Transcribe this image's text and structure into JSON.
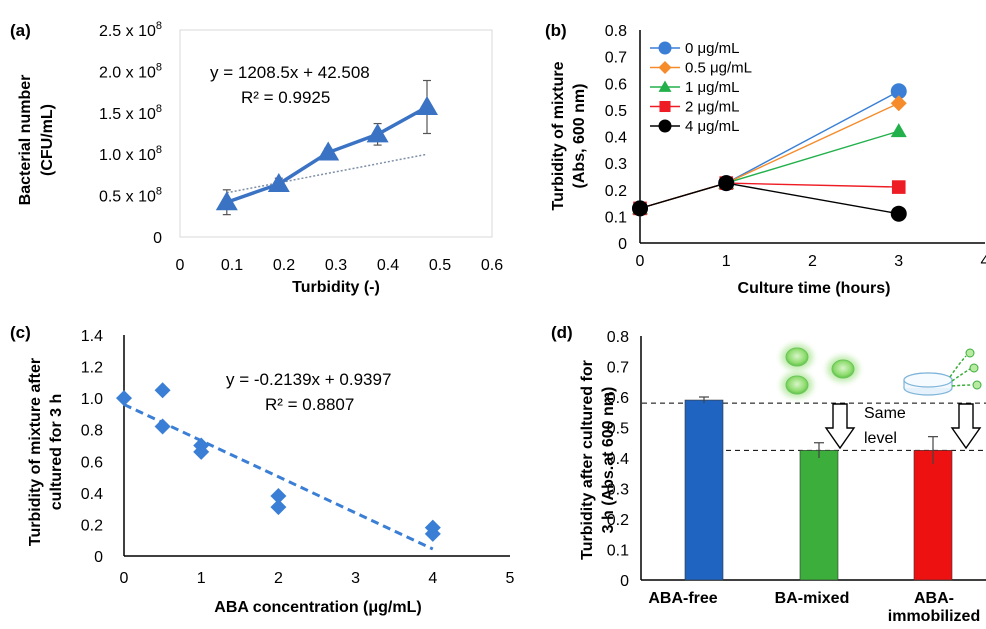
{
  "panels": {
    "a": {
      "label": "(a)",
      "equation": "y = 1208.5x + 42.508",
      "r2": "R² = 0.9925",
      "xlabel": "Turbidity (-)",
      "ylabel_line1": "Bacterial number",
      "ylabel_line2": "(CFU/mL)",
      "xticks": [
        "0",
        "0.1",
        "0.2",
        "0.3",
        "0.4",
        "0.5",
        "0.6"
      ],
      "yticks": [
        "0",
        "0.5 x 10",
        "1.0 x 10",
        "1.5 x 10",
        "2.0 x 10",
        "2.5 x 10"
      ],
      "ytick_exp": "8"
    },
    "b": {
      "label": "(b)",
      "xlabel": "Culture time (hours)",
      "ylabel_line1": "Turbidity of mixture",
      "ylabel_line2": "(Abs, 600 nm)",
      "xticks": [
        "0",
        "1",
        "2",
        "3",
        "4"
      ],
      "yticks": [
        "0",
        "0.1",
        "0.2",
        "0.3",
        "0.4",
        "0.5",
        "0.6",
        "0.7",
        "0.8"
      ]
    },
    "c": {
      "label": "(c)",
      "equation": "y = -0.2139x + 0.9397",
      "r2": "R² = 0.8807",
      "xlabel": "ABA concentration (μg/mL)",
      "ylabel_line1": "Turbidity of mixture after",
      "ylabel_line2": "cultured for 3 h",
      "xticks": [
        "0",
        "1",
        "2",
        "3",
        "4",
        "5"
      ],
      "yticks": [
        "0",
        "0.2",
        "0.4",
        "0.6",
        "0.8",
        "1.0",
        "1.2",
        "1.4"
      ]
    },
    "d": {
      "label": "(d)",
      "ylabel_line1": "Turbidity after cultured for",
      "ylabel_line2": "3 h (Abs.at 600 nm)",
      "yticks": [
        "0",
        "0.1",
        "0.2",
        "0.3",
        "0.4",
        "0.5",
        "0.6",
        "0.7",
        "0.8"
      ],
      "categories_display": [
        "ABA-free",
        "BA-mixed",
        "ABA-",
        "immobilized"
      ],
      "annotation_line1": "Same",
      "annotation_line2": "level"
    }
  },
  "colors": {
    "a_series": "#3a72c4",
    "b_0": "#3a7fd5",
    "b_05": "#f58b2a",
    "b_1": "#22b04b",
    "b_2": "#ee1c24",
    "b_4": "#000000",
    "c_points": "#3a7fd5",
    "d_free": "#1f64c0",
    "d_mixed": "#3cae3c",
    "d_immobilized": "#ee1111",
    "bacteria": "#8fdc6f"
  },
  "chart_data": [
    {
      "type": "line",
      "panel": "a",
      "xlabel": "Turbidity (-)",
      "ylabel": "Bacterial number (CFU/mL)",
      "xlim": [
        0,
        0.6
      ],
      "ylim": [
        0,
        250
      ],
      "y_unit_note": "x 10^8 CFU/mL shown as 0.5 x 10^8 steps",
      "series": [
        {
          "x": [
            0.09,
            0.19,
            0.285,
            0.38,
            0.475
          ],
          "y": [
            42,
            64,
            102,
            124,
            157
          ],
          "err": [
            15,
            7,
            5,
            13,
            32
          ]
        }
      ],
      "trendline": {
        "slope": 1208.5,
        "intercept": 42.508,
        "r2": 0.9925
      },
      "grid": false
    },
    {
      "type": "line",
      "panel": "b",
      "xlabel": "Culture time (hours)",
      "ylabel": "Turbidity of mixture (Abs, 600 nm)",
      "xlim": [
        0,
        4
      ],
      "ylim": [
        0,
        0.8
      ],
      "legend": "top-left",
      "x": [
        0,
        1,
        3
      ],
      "series": [
        {
          "name": "0 μg/mL",
          "values": [
            0.13,
            0.225,
            0.57
          ],
          "marker": "circle"
        },
        {
          "name": "0.5 μg/mL",
          "values": [
            0.13,
            0.225,
            0.525
          ],
          "marker": "diamond"
        },
        {
          "name": "1 μg/mL",
          "values": [
            0.13,
            0.225,
            0.42
          ],
          "marker": "triangle"
        },
        {
          "name": "2 μg/mL",
          "values": [
            0.13,
            0.225,
            0.21
          ],
          "marker": "square"
        },
        {
          "name": "4 μg/mL",
          "values": [
            0.13,
            0.225,
            0.11
          ],
          "marker": "circle"
        }
      ],
      "grid": false
    },
    {
      "type": "scatter",
      "panel": "c",
      "xlabel": "ABA concentration (μg/mL)",
      "ylabel": "Turbidity of mixture after cultured for 3 h",
      "xlim": [
        0,
        5
      ],
      "ylim": [
        0,
        1.4
      ],
      "points": [
        {
          "x": 0,
          "y": 1.0
        },
        {
          "x": 0.5,
          "y": 1.05
        },
        {
          "x": 0.5,
          "y": 0.82
        },
        {
          "x": 1,
          "y": 0.7
        },
        {
          "x": 1,
          "y": 0.66
        },
        {
          "x": 2,
          "y": 0.38
        },
        {
          "x": 2,
          "y": 0.31
        },
        {
          "x": 4,
          "y": 0.18
        },
        {
          "x": 4,
          "y": 0.14
        }
      ],
      "trendline": {
        "slope": -0.2139,
        "intercept": 0.9397,
        "r2": 0.8807,
        "style": "dashed"
      },
      "grid": false
    },
    {
      "type": "bar",
      "panel": "d",
      "ylabel": "Turbidity after cultured for 3 h (Abs.at 600 nm)",
      "ylim": [
        0,
        0.8
      ],
      "categories": [
        "ABA-free",
        "BA-mixed",
        "ABA-immobilized"
      ],
      "values": [
        0.59,
        0.425,
        0.425
      ],
      "err": [
        0.01,
        0.025,
        0.045
      ],
      "reference_lines": [
        0.58,
        0.425
      ],
      "grid": false
    }
  ]
}
